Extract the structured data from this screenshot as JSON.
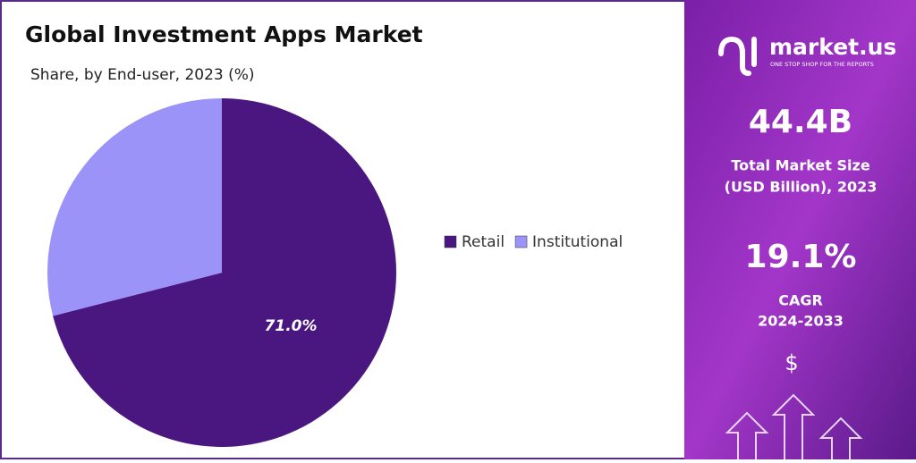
{
  "chart_data": {
    "type": "pie",
    "title": "Global Investment Apps Market",
    "subtitle": "Share, by End-user, 2023 (%)",
    "categories": [
      "Retail",
      "Institutional"
    ],
    "values": [
      71.0,
      29.0
    ],
    "value_labels": [
      "71.0%",
      null
    ],
    "colors": [
      "#4a1680",
      "#9b93f7"
    ],
    "legend": "right"
  },
  "panel": {
    "brand": "market.us",
    "tagline": "ONE STOP SHOP FOR THE REPORTS",
    "market_size": "44.4B",
    "market_size_label": [
      "Total Market Size",
      "(USD Billion), 2023"
    ],
    "cagr": "19.1%",
    "cagr_label": [
      "CAGR",
      "2024-2033"
    ],
    "currency": "$"
  }
}
